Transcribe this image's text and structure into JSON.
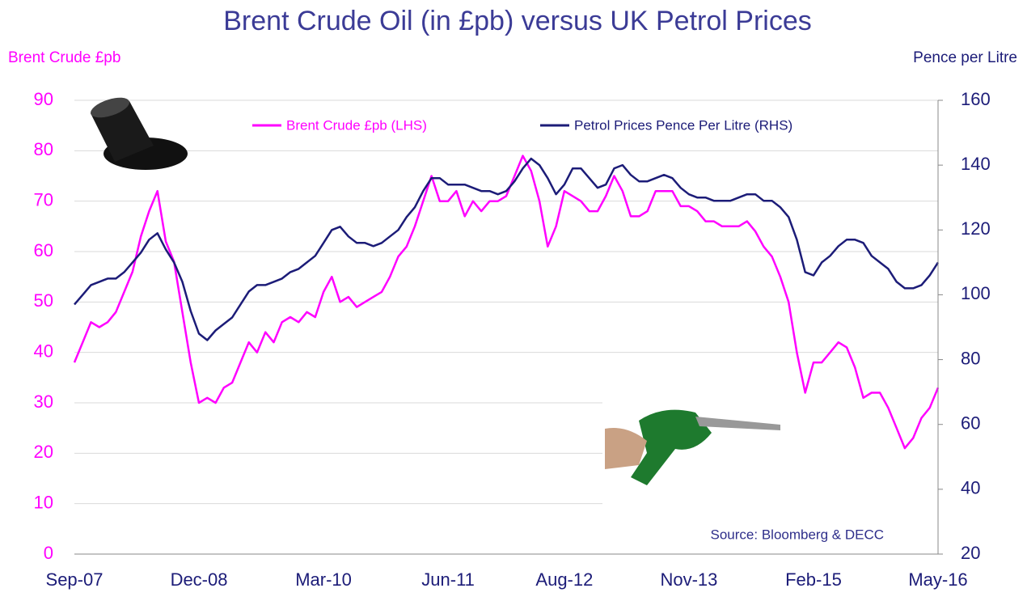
{
  "chart_data": {
    "type": "line",
    "title": "Brent Crude Oil (in £pb) versus UK Petrol Prices",
    "y_label": "Brent Crude £pb",
    "y2_label": "Pence per Litre",
    "annotation": "Source: Bloomberg & DECC",
    "legend": "top",
    "grid": true,
    "ylim": [
      0,
      90
    ],
    "yticks": [
      0,
      10,
      20,
      30,
      40,
      50,
      60,
      70,
      80,
      90
    ],
    "y2lim": [
      20,
      160
    ],
    "y2ticks": [
      20,
      40,
      60,
      80,
      100,
      120,
      140,
      160
    ],
    "categories": [
      "Sep-07",
      null,
      null,
      null,
      null,
      null,
      null,
      null,
      null,
      null,
      null,
      null,
      null,
      null,
      null,
      "Dec-08",
      null,
      null,
      null,
      null,
      null,
      null,
      null,
      null,
      null,
      null,
      null,
      null,
      null,
      null,
      "Mar-10",
      null,
      null,
      null,
      null,
      null,
      null,
      null,
      null,
      null,
      null,
      null,
      null,
      null,
      null,
      "Jun-11",
      null,
      null,
      null,
      null,
      null,
      null,
      null,
      null,
      null,
      null,
      null,
      null,
      null,
      "Aug-12",
      null,
      null,
      null,
      null,
      null,
      null,
      null,
      null,
      null,
      null,
      null,
      null,
      null,
      null,
      "Nov-13",
      null,
      null,
      null,
      null,
      null,
      null,
      null,
      null,
      null,
      null,
      null,
      null,
      null,
      null,
      "Feb-15",
      null,
      null,
      null,
      null,
      null,
      null,
      null,
      null,
      null,
      null,
      null,
      null,
      null,
      null,
      "May-16"
    ],
    "series": [
      {
        "name": "Brent Crude £pb (LHS)",
        "color": "#ff00ff",
        "axis": "y",
        "values": [
          38,
          42,
          46,
          45,
          46,
          48,
          52,
          56,
          63,
          68,
          72,
          62,
          58,
          48,
          38,
          30,
          31,
          30,
          33,
          34,
          38,
          42,
          40,
          44,
          42,
          46,
          47,
          46,
          48,
          47,
          52,
          55,
          50,
          51,
          49,
          50,
          51,
          52,
          55,
          59,
          61,
          65,
          70,
          75,
          70,
          70,
          72,
          67,
          70,
          68,
          70,
          70,
          71,
          75,
          79,
          76,
          70,
          61,
          65,
          72,
          71,
          70,
          68,
          68,
          71,
          75,
          72,
          67,
          67,
          68,
          72,
          72,
          72,
          69,
          69,
          68,
          66,
          66,
          65,
          65,
          65,
          66,
          64,
          61,
          59,
          55,
          50,
          40,
          32,
          38,
          38,
          40,
          42,
          41,
          37,
          31,
          32,
          32,
          29,
          25,
          21,
          23,
          27,
          29,
          33
        ]
      },
      {
        "name": "Petrol Prices Pence Per Litre (RHS)",
        "color": "#1c1c78",
        "axis": "y2",
        "values": [
          97,
          100,
          103,
          104,
          105,
          105,
          107,
          110,
          113,
          117,
          119,
          114,
          110,
          104,
          95,
          88,
          86,
          89,
          91,
          93,
          97,
          101,
          103,
          103,
          104,
          105,
          107,
          108,
          110,
          112,
          116,
          120,
          121,
          118,
          116,
          116,
          115,
          116,
          118,
          120,
          124,
          127,
          132,
          136,
          136,
          134,
          134,
          134,
          133,
          132,
          132,
          131,
          132,
          135,
          139,
          142,
          140,
          136,
          131,
          134,
          139,
          139,
          136,
          133,
          134,
          139,
          140,
          137,
          135,
          135,
          136,
          137,
          136,
          133,
          131,
          130,
          130,
          129,
          129,
          129,
          130,
          131,
          131,
          129,
          129,
          127,
          124,
          117,
          107,
          106,
          110,
          112,
          115,
          117,
          117,
          116,
          112,
          110,
          108,
          104,
          102,
          102,
          103,
          106,
          110
        ]
      }
    ]
  }
}
